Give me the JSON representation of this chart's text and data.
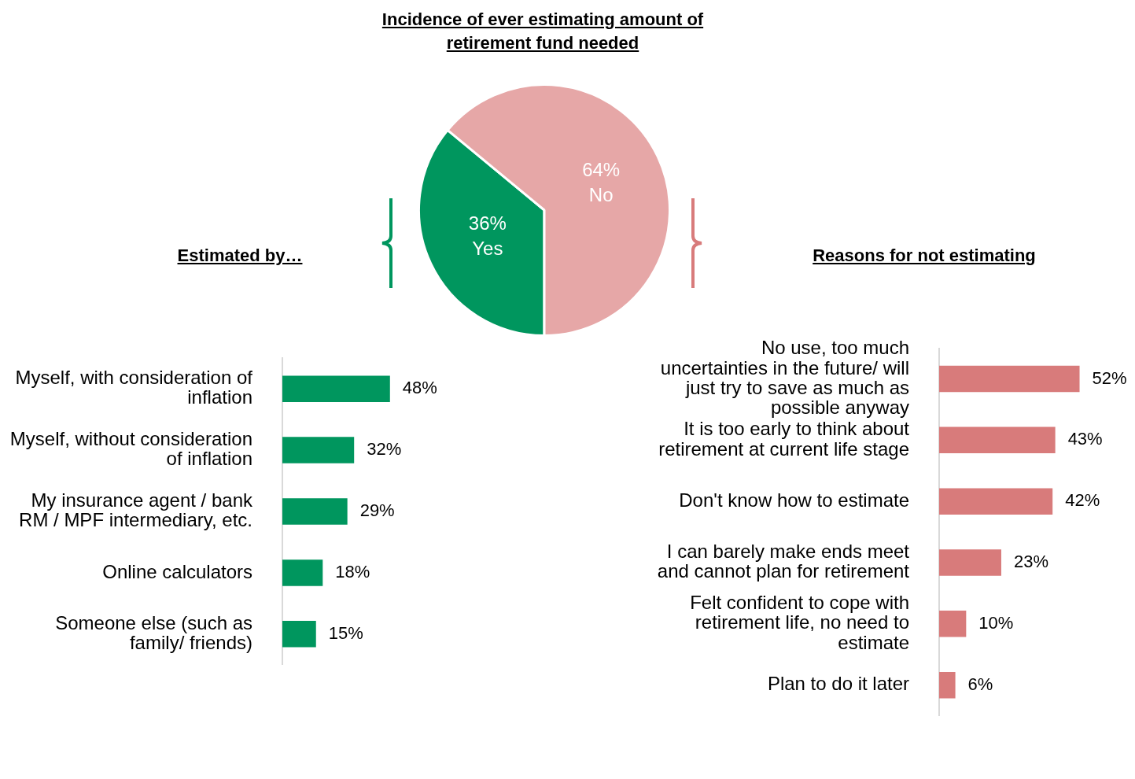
{
  "chart_data": [
    {
      "type": "pie",
      "title": "Incidence of ever estimating amount of retirement fund needed",
      "categories": [
        "Yes",
        "No"
      ],
      "values": [
        36,
        64
      ],
      "colors": [
        "#00965e",
        "#e6a7a7"
      ],
      "value_labels": [
        "36%",
        "64%"
      ]
    },
    {
      "type": "bar",
      "orientation": "horizontal",
      "title": "Estimated by…",
      "categories": [
        "Myself, with consideration of inflation",
        "Myself, without consideration of inflation",
        "My insurance agent / bank RM / MPF intermediary, etc.",
        "Online calculators",
        "Someone else (such as family/ friends)"
      ],
      "values": [
        48,
        32,
        29,
        18,
        15
      ],
      "color": "#00965e",
      "value_labels": [
        "48%",
        "32%",
        "29%",
        "18%",
        "15%"
      ]
    },
    {
      "type": "bar",
      "orientation": "horizontal",
      "title": "Reasons for not estimating",
      "categories": [
        "No use, too much uncertainties in the future/ will just try to save as much as possible anyway",
        "It is too early to think about retirement at current life stage",
        "Don't know how to estimate",
        "I can barely make ends meet and cannot plan for retirement",
        "Felt confident to cope with retirement life, no need to estimate",
        "Plan to do it later"
      ],
      "values": [
        52,
        43,
        42,
        23,
        10,
        6
      ],
      "color": "#d87b7b",
      "value_labels": [
        "52%",
        "43%",
        "42%",
        "23%",
        "10%",
        "6%"
      ]
    }
  ]
}
